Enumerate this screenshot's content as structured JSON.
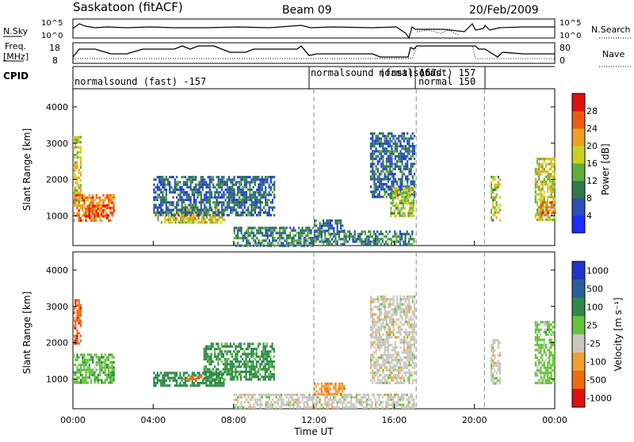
{
  "header": {
    "station": "Saskatoon (fitACF)",
    "beam": "Beam 09",
    "date": "20/Feb/2009"
  },
  "strips": {
    "nsky_label": "N.Sky",
    "nsky_ticks": [
      "10^5",
      "10^0"
    ],
    "nsearch_label": "N.Search",
    "nsearch_ticks": [
      "10^5",
      "10^0"
    ],
    "freq_label_1": "Freq.",
    "freq_label_2": "[MHz]",
    "freq_ticks": [
      "18",
      "8"
    ],
    "nave_label": "Nave",
    "nave_ticks": [
      "80",
      "0"
    ],
    "cpid_label": "CPID",
    "cpid_segments": [
      {
        "label": "normalsound (fast) -157",
        "start": 0.0,
        "end": 12.0
      },
      {
        "label": "normalsound (fast) 157",
        "start": 12.0,
        "end": 17.1
      },
      {
        "label": "normalsound",
        "start": 17.1,
        "end": 17.3
      },
      {
        "label": "(fast) 157",
        "start": 17.3,
        "end": 20.5
      },
      {
        "label": "normal 150",
        "start": 17.1,
        "end": 20.5
      }
    ]
  },
  "axes": {
    "ylabel_top": "Slant Range [km]",
    "ylabel_bottom": "Slant Range [km]",
    "xlabel": "Time UT",
    "xticks": [
      "00:00",
      "04:00",
      "08:00",
      "12:00",
      "16:00",
      "20:00",
      "00:00"
    ],
    "yticks": [
      "1000",
      "2000",
      "3000",
      "4000"
    ]
  },
  "power_scale": {
    "label": "Power [dB]",
    "ticks": [
      "4",
      "8",
      "12",
      "16",
      "20",
      "24",
      "28"
    ],
    "colors": [
      "#1a2cff",
      "#2a4fb8",
      "#2e7a4a",
      "#5fae3a",
      "#c8d21e",
      "#f0a020",
      "#f05a10",
      "#e01010"
    ]
  },
  "velocity_scale": {
    "label": "Velocity [m s⁻¹]",
    "ticks": [
      "1000",
      "500",
      "100",
      "25",
      "-25",
      "-100",
      "-500",
      "-1000"
    ],
    "colors": [
      "#2233cc",
      "#2a5f9e",
      "#2e8a4a",
      "#66c23a",
      "#c8c8c0",
      "#f0a030",
      "#f06a10",
      "#e01010"
    ]
  },
  "chart_data": {
    "type": "heatmap",
    "title": "Saskatoon (fitACF)  Beam 09  20/Feb/2009",
    "xlabel": "Time UT",
    "ylabel": "Slant Range [km]",
    "xlim": [
      0,
      24
    ],
    "ylim": [
      180,
      4500
    ],
    "dashed_vlines_hours": [
      12,
      17.1,
      20.5
    ],
    "panels": [
      {
        "name": "Power [dB]",
        "colorbar_range": [
          0,
          32
        ],
        "regions": [
          {
            "t0": 0.0,
            "t1": 0.4,
            "r0": 1300,
            "r1": 3200,
            "v": 18
          },
          {
            "t0": 0.0,
            "t1": 2.0,
            "r0": 900,
            "r1": 1600,
            "v": 24
          },
          {
            "t0": 0.6,
            "t1": 1.6,
            "r0": 1000,
            "r1": 1300,
            "v": 28
          },
          {
            "t0": 4.2,
            "t1": 7.5,
            "r0": 800,
            "r1": 1200,
            "v": 18
          },
          {
            "t0": 5.0,
            "t1": 6.5,
            "r0": 900,
            "r1": 1100,
            "v": 22
          },
          {
            "t0": 4.0,
            "t1": 10.0,
            "r0": 1000,
            "r1": 2100,
            "v": 8
          },
          {
            "t0": 8.0,
            "t1": 12.0,
            "r0": 200,
            "r1": 700,
            "v": 10
          },
          {
            "t0": 12.0,
            "t1": 13.5,
            "r0": 600,
            "r1": 900,
            "v": 8
          },
          {
            "t0": 12.0,
            "t1": 17.0,
            "r0": 200,
            "r1": 600,
            "v": 10
          },
          {
            "t0": 14.8,
            "t1": 17.0,
            "r0": 1500,
            "r1": 3300,
            "v": 8
          },
          {
            "t0": 15.8,
            "t1": 17.0,
            "r0": 1000,
            "r1": 1800,
            "v": 16
          },
          {
            "t0": 20.8,
            "t1": 21.3,
            "r0": 900,
            "r1": 2100,
            "v": 16
          },
          {
            "t0": 23.0,
            "t1": 24.0,
            "r0": 900,
            "r1": 2600,
            "v": 18
          },
          {
            "t0": 23.2,
            "t1": 24.0,
            "r0": 1000,
            "r1": 1400,
            "v": 26
          }
        ]
      },
      {
        "name": "Velocity [m s-1]",
        "regions": [
          {
            "t0": 0.0,
            "t1": 0.4,
            "r0": 2000,
            "r1": 3200,
            "v": -400
          },
          {
            "t0": 0.0,
            "t1": 2.0,
            "r0": 900,
            "r1": 1700,
            "v": 80
          },
          {
            "t0": 4.0,
            "t1": 7.5,
            "r0": 800,
            "r1": 1200,
            "v": 300
          },
          {
            "t0": 5.5,
            "t1": 6.5,
            "r0": 1000,
            "r1": 1100,
            "v": -200
          },
          {
            "t0": 6.5,
            "t1": 10.0,
            "r0": 1000,
            "r1": 2000,
            "v": 150
          },
          {
            "t0": 8.0,
            "t1": 17.0,
            "r0": 200,
            "r1": 600,
            "v": 0
          },
          {
            "t0": 12.0,
            "t1": 13.5,
            "r0": 600,
            "r1": 900,
            "v": -80
          },
          {
            "t0": 14.8,
            "t1": 17.0,
            "r0": 900,
            "r1": 3300,
            "v": 0
          },
          {
            "t0": 20.8,
            "t1": 21.3,
            "r0": 900,
            "r1": 2100,
            "v": 0
          },
          {
            "t0": 23.0,
            "t1": 24.0,
            "r0": 900,
            "r1": 2600,
            "v": 50
          }
        ]
      }
    ]
  }
}
